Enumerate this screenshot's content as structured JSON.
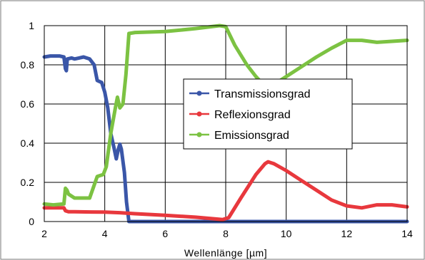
{
  "chart_data": {
    "type": "line",
    "title": "",
    "xlabel": "Wellenlänge [µm]",
    "ylabel": "",
    "xlim": [
      2,
      14
    ],
    "ylim": [
      0,
      1
    ],
    "grid": true,
    "legend_position": "center-right",
    "x_ticks": [
      "2",
      "4",
      "6",
      "8",
      "10",
      "12",
      "14"
    ],
    "y_ticks": [
      "0",
      "0.2",
      "0.4",
      "0.6",
      "0.8",
      "1"
    ],
    "series": [
      {
        "name": "Transmissionsgrad",
        "color": "#3a56a8",
        "points": [
          [
            2.0,
            0.84
          ],
          [
            2.2,
            0.845
          ],
          [
            2.5,
            0.845
          ],
          [
            2.65,
            0.84
          ],
          [
            2.7,
            0.78
          ],
          [
            2.73,
            0.77
          ],
          [
            2.76,
            0.83
          ],
          [
            2.9,
            0.835
          ],
          [
            3.0,
            0.83
          ],
          [
            3.15,
            0.835
          ],
          [
            3.3,
            0.84
          ],
          [
            3.5,
            0.83
          ],
          [
            3.65,
            0.8
          ],
          [
            3.75,
            0.72
          ],
          [
            3.9,
            0.71
          ],
          [
            4.0,
            0.66
          ],
          [
            4.1,
            0.58
          ],
          [
            4.2,
            0.45
          ],
          [
            4.3,
            0.38
          ],
          [
            4.38,
            0.32
          ],
          [
            4.45,
            0.37
          ],
          [
            4.5,
            0.395
          ],
          [
            4.55,
            0.37
          ],
          [
            4.65,
            0.25
          ],
          [
            4.72,
            0.1
          ],
          [
            4.8,
            0.0
          ],
          [
            5.0,
            0.0
          ],
          [
            8.0,
            0.0
          ],
          [
            10.0,
            0.0
          ],
          [
            12.0,
            0.0
          ],
          [
            14.0,
            0.0
          ]
        ]
      },
      {
        "name": "Reflexionsgrad",
        "color": "#e8383d",
        "points": [
          [
            2.0,
            0.07
          ],
          [
            2.3,
            0.07
          ],
          [
            2.65,
            0.07
          ],
          [
            2.7,
            0.055
          ],
          [
            2.8,
            0.05
          ],
          [
            3.0,
            0.05
          ],
          [
            4.0,
            0.048
          ],
          [
            4.5,
            0.045
          ],
          [
            5.0,
            0.04
          ],
          [
            6.0,
            0.032
          ],
          [
            7.0,
            0.022
          ],
          [
            7.9,
            0.01
          ],
          [
            8.1,
            0.02
          ],
          [
            8.5,
            0.12
          ],
          [
            9.0,
            0.24
          ],
          [
            9.3,
            0.295
          ],
          [
            9.4,
            0.305
          ],
          [
            9.6,
            0.295
          ],
          [
            10.0,
            0.26
          ],
          [
            10.5,
            0.21
          ],
          [
            11.0,
            0.16
          ],
          [
            11.5,
            0.11
          ],
          [
            12.0,
            0.08
          ],
          [
            12.5,
            0.07
          ],
          [
            13.0,
            0.085
          ],
          [
            13.5,
            0.085
          ],
          [
            14.0,
            0.075
          ]
        ]
      },
      {
        "name": "Emissionsgrad",
        "color": "#7cc242",
        "points": [
          [
            2.0,
            0.09
          ],
          [
            2.3,
            0.085
          ],
          [
            2.65,
            0.09
          ],
          [
            2.7,
            0.17
          ],
          [
            2.75,
            0.16
          ],
          [
            2.8,
            0.14
          ],
          [
            3.0,
            0.12
          ],
          [
            3.5,
            0.12
          ],
          [
            3.75,
            0.23
          ],
          [
            3.95,
            0.24
          ],
          [
            4.05,
            0.28
          ],
          [
            4.2,
            0.45
          ],
          [
            4.35,
            0.58
          ],
          [
            4.42,
            0.635
          ],
          [
            4.5,
            0.58
          ],
          [
            4.6,
            0.6
          ],
          [
            4.7,
            0.75
          ],
          [
            4.8,
            0.96
          ],
          [
            5.0,
            0.965
          ],
          [
            6.0,
            0.97
          ],
          [
            7.0,
            0.985
          ],
          [
            7.8,
            1.0
          ],
          [
            8.0,
            0.995
          ],
          [
            8.3,
            0.9
          ],
          [
            8.7,
            0.8
          ],
          [
            9.0,
            0.74
          ],
          [
            9.3,
            0.69
          ],
          [
            9.6,
            0.7
          ],
          [
            10.0,
            0.74
          ],
          [
            10.5,
            0.79
          ],
          [
            11.0,
            0.84
          ],
          [
            11.5,
            0.885
          ],
          [
            12.0,
            0.925
          ],
          [
            12.5,
            0.925
          ],
          [
            13.0,
            0.915
          ],
          [
            13.5,
            0.92
          ],
          [
            14.0,
            0.925
          ]
        ]
      }
    ]
  }
}
